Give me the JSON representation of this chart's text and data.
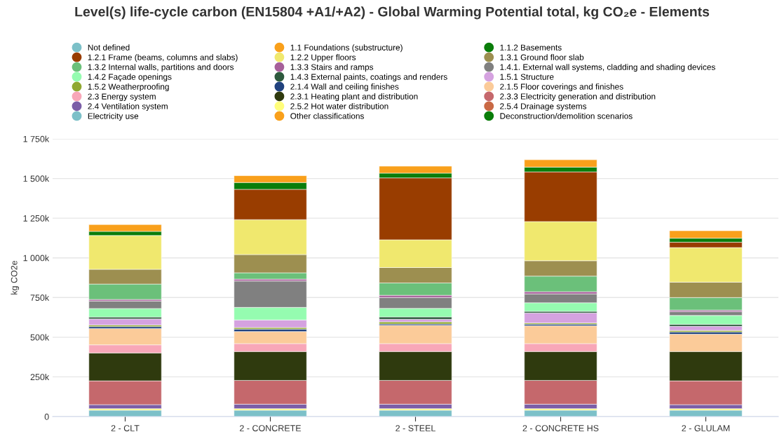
{
  "chart_data": {
    "type": "bar",
    "stacked": true,
    "title": "Level(s) life-cycle carbon (EN15804 +A1/+A2) - Global Warming Potential total, kg CO₂e - Elements",
    "categories": [
      "2 - CLT",
      "2 - CONCRETE",
      "2 - STEEL",
      "2 - CONCRETE HS",
      "2 - GLULAM"
    ],
    "ylabel": "kg CO2e",
    "ylim": [
      0,
      1750000
    ],
    "yticks": [
      {
        "value": 0,
        "label": "0"
      },
      {
        "value": 250000,
        "label": "250k"
      },
      {
        "value": 500000,
        "label": "500k"
      },
      {
        "value": 750000,
        "label": "750k"
      },
      {
        "value": 1000000,
        "label": "1 000k"
      },
      {
        "value": 1250000,
        "label": "1 250k"
      },
      {
        "value": 1500000,
        "label": "1 500k"
      },
      {
        "value": 1750000,
        "label": "1 750k"
      }
    ],
    "grid": "y",
    "legend": "top",
    "series": [
      {
        "name": "Deconstruction/demolition scenarios",
        "color": "#0a7d0a",
        "values": [
          0,
          0,
          0,
          0,
          0
        ]
      },
      {
        "name": "Other classifications",
        "color": "#f9a01b",
        "values": [
          0,
          0,
          0,
          0,
          0
        ]
      },
      {
        "name": "Electricity use",
        "color": "#7cc0c8",
        "values": [
          40000,
          40000,
          40000,
          40000,
          40000
        ]
      },
      {
        "name": "2.5.4 Drainage systems",
        "color": "#c96945",
        "values": [
          0,
          0,
          0,
          0,
          0
        ]
      },
      {
        "name": "2.5.2 Hot water distribution",
        "color": "#fffd7b",
        "values": [
          10000,
          10000,
          10000,
          10000,
          10000
        ]
      },
      {
        "name": "2.4 Ventilation system",
        "color": "#7b5ea7",
        "values": [
          25000,
          28000,
          28000,
          28000,
          25000
        ]
      },
      {
        "name": "2.3.3 Electricity generation and distribution",
        "color": "#c5686c",
        "values": [
          150000,
          150000,
          150000,
          150000,
          150000
        ]
      },
      {
        "name": "2.3.1 Heating plant and distribution",
        "color": "#2f3a0e",
        "values": [
          176000,
          182000,
          182000,
          182000,
          185000
        ]
      },
      {
        "name": "2.3 Energy system",
        "color": "#f8a7b8",
        "values": [
          51000,
          50000,
          50000,
          50000,
          0
        ]
      },
      {
        "name": "2.1.5 Floor coverings and finishes",
        "color": "#fbcb99",
        "values": [
          103000,
          76000,
          115000,
          112000,
          109000
        ]
      },
      {
        "name": "2.1.4 Wall and ceiling finishes",
        "color": "#21427e",
        "values": [
          12000,
          15000,
          8000,
          10000,
          14000
        ]
      },
      {
        "name": "1.5.2 Weatherproofing",
        "color": "#90a832",
        "values": [
          10000,
          10000,
          14000,
          8000,
          10000
        ]
      },
      {
        "name": "1.5.1 Structure",
        "color": "#d5a2e0",
        "values": [
          38000,
          48000,
          16000,
          63000,
          26000
        ]
      },
      {
        "name": "1.4.3 External paints, coatings and renders",
        "color": "#2e5a3e",
        "values": [
          12000,
          0,
          15000,
          10000,
          12000
        ]
      },
      {
        "name": "1.4.2 Façade openings",
        "color": "#95fcb0",
        "values": [
          54000,
          79000,
          54000,
          54000,
          56000
        ]
      },
      {
        "name": "1.4.1. External wall systems, cladding and shading devices",
        "color": "#808080",
        "values": [
          47000,
          166000,
          68000,
          56000,
          24000
        ]
      },
      {
        "name": "1.3.3 Stairs and ramps",
        "color": "#a6609a",
        "values": [
          10000,
          12000,
          14000,
          14000,
          10000
        ]
      },
      {
        "name": "1.3.2 Internal walls, partitions and doors",
        "color": "#6bc07a",
        "values": [
          97000,
          40000,
          78000,
          98000,
          79000
        ]
      },
      {
        "name": "1.3.1 Ground floor slab",
        "color": "#9d8f50",
        "values": [
          93000,
          115000,
          97000,
          97000,
          97000
        ]
      },
      {
        "name": "1.2.2 Upper floors",
        "color": "#f0e86e",
        "values": [
          213000,
          220000,
          175000,
          247000,
          218000
        ]
      },
      {
        "name": "1.2.1 Frame (beams, columns and slabs)",
        "color": "#993d00",
        "values": [
          0,
          191000,
          390000,
          313000,
          34000
        ]
      },
      {
        "name": "1.1.2 Basements",
        "color": "#0a7d0a",
        "values": [
          26000,
          43000,
          30000,
          30000,
          25000
        ]
      },
      {
        "name": "1.1 Foundations (substructure)",
        "color": "#f9a01b",
        "values": [
          43000,
          43000,
          44000,
          46000,
          47000
        ]
      },
      {
        "name": "Not defined",
        "color": "#7cc0c8",
        "values": [
          0,
          0,
          0,
          0,
          0
        ]
      }
    ]
  }
}
